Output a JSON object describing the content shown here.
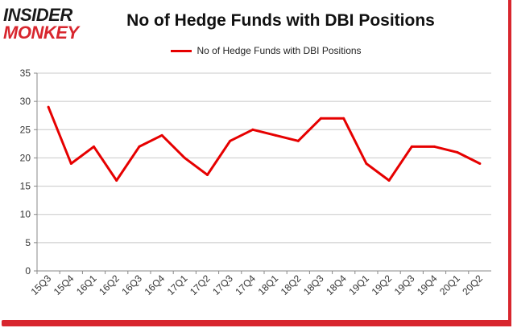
{
  "logo": {
    "line1": "INSIDER",
    "line2": "MONKEY"
  },
  "chart_data": {
    "type": "line",
    "title": "No of Hedge Funds with DBI Positions",
    "xlabel": "",
    "ylabel": "",
    "categories": [
      "15Q3",
      "15Q4",
      "16Q1",
      "16Q2",
      "16Q3",
      "16Q4",
      "17Q1",
      "17Q2",
      "17Q3",
      "17Q4",
      "18Q1",
      "18Q2",
      "18Q3",
      "18Q4",
      "19Q1",
      "19Q2",
      "19Q3",
      "19Q4",
      "20Q1",
      "20Q2"
    ],
    "series": [
      {
        "name": "No of Hedge Funds with DBI Positions",
        "values": [
          29,
          19,
          22,
          16,
          22,
          24,
          20,
          17,
          23,
          25,
          24,
          23,
          27,
          27,
          19,
          16,
          22,
          22,
          21,
          19
        ]
      }
    ],
    "ylim": [
      0,
      35
    ],
    "yticks": [
      0,
      5,
      10,
      15,
      20,
      25,
      30,
      35
    ],
    "grid": true,
    "legend_position": "top-center",
    "line_color": "#e60000",
    "brand_color": "#d8262e"
  }
}
